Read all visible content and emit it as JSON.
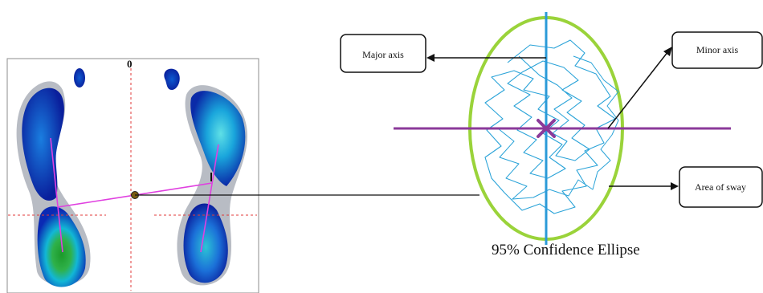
{
  "footplot": {
    "origin_label": "0"
  },
  "callouts": {
    "major_axis": "Major axis",
    "minor_axis": "Minor axis",
    "area_of_sway": "Area of sway"
  },
  "ellipse": {
    "caption": "95% Confidence Ellipse"
  },
  "colors": {
    "ellipse_outline": "#9ad33a",
    "major_axis_line": "#2a9ad8",
    "minor_axis_line": "#8b3a9a",
    "center_mark": "#8b3a9a",
    "sway_trace": "#2aa3d8",
    "connector_line": "#e040e0",
    "heat_low": "#0a1f9c",
    "heat_mid": "#12b7d6",
    "heat_high": "#2fb14a",
    "halo": "#b8bcc4"
  }
}
